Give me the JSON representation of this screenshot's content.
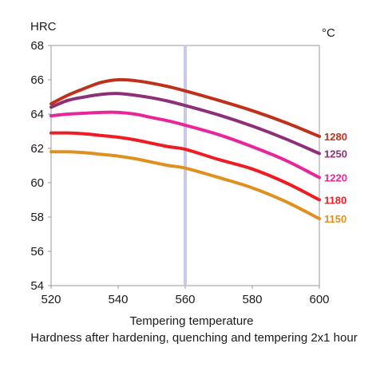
{
  "chart_data": {
    "type": "line",
    "ylabel": "HRC",
    "legend_title": "°C",
    "xlabel": "Tempering temperature",
    "caption": "Hardness after hardening, quenching and tempering  2x1 hour",
    "xlim": [
      520,
      600
    ],
    "ylim": [
      54,
      68
    ],
    "xticks": [
      520,
      540,
      560,
      580,
      600
    ],
    "yticks": [
      54,
      56,
      58,
      60,
      62,
      64,
      66,
      68
    ],
    "marker_line_x": 560,
    "marker_line_color": "#c9cbe6",
    "grid": false,
    "series": [
      {
        "name": "1280",
        "color": "#c0311c",
        "x": [
          520,
          525,
          530,
          535,
          540,
          545,
          550,
          555,
          560,
          570,
          580,
          590,
          600
        ],
        "y": [
          64.6,
          65.1,
          65.5,
          65.85,
          66.0,
          65.95,
          65.8,
          65.6,
          65.35,
          64.8,
          64.2,
          63.5,
          62.7
        ]
      },
      {
        "name": "1250",
        "color": "#8d2f79",
        "x": [
          520,
          525,
          530,
          535,
          540,
          545,
          550,
          555,
          560,
          570,
          580,
          590,
          600
        ],
        "y": [
          64.4,
          64.8,
          65.0,
          65.15,
          65.2,
          65.1,
          64.95,
          64.75,
          64.5,
          63.95,
          63.3,
          62.55,
          61.7
        ]
      },
      {
        "name": "1220",
        "color": "#e8259a",
        "x": [
          520,
          525,
          530,
          535,
          540,
          545,
          550,
          555,
          560,
          570,
          580,
          590,
          600
        ],
        "y": [
          63.9,
          64.0,
          64.05,
          64.1,
          64.1,
          64.0,
          63.8,
          63.6,
          63.35,
          62.8,
          62.1,
          61.3,
          60.3
        ]
      },
      {
        "name": "1180",
        "color": "#ef1c24",
        "x": [
          520,
          525,
          530,
          535,
          540,
          545,
          550,
          555,
          560,
          570,
          580,
          590,
          600
        ],
        "y": [
          62.9,
          62.9,
          62.85,
          62.75,
          62.65,
          62.5,
          62.3,
          62.1,
          61.95,
          61.35,
          60.8,
          60.0,
          59.0
        ]
      },
      {
        "name": "1150",
        "color": "#e0901f",
        "x": [
          520,
          525,
          530,
          535,
          540,
          545,
          550,
          555,
          560,
          570,
          580,
          590,
          600
        ],
        "y": [
          61.8,
          61.8,
          61.75,
          61.65,
          61.55,
          61.4,
          61.2,
          61.0,
          60.85,
          60.3,
          59.7,
          58.9,
          57.9
        ]
      }
    ]
  }
}
